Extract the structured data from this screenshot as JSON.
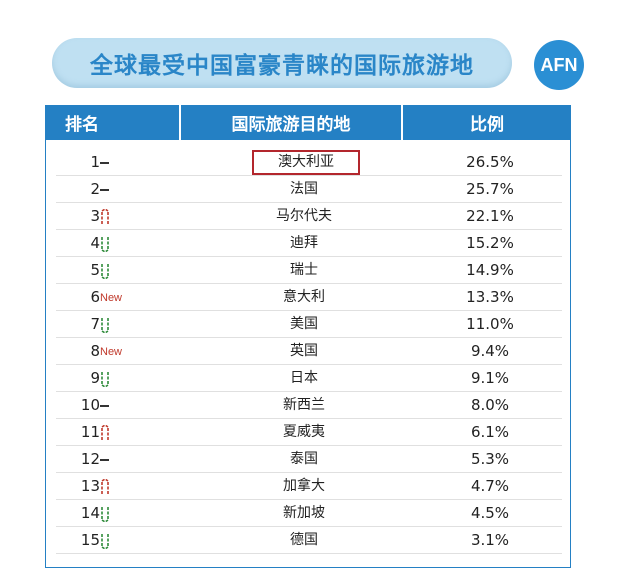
{
  "title": "全球最受中国富豪青睐的国际旅游地",
  "logo": "AFN",
  "headers": {
    "rank": "排名",
    "destination": "国际旅游目的地",
    "share": "比例"
  },
  "colors": {
    "header_bg": "#2480c4",
    "title_text": "#2a86c8",
    "up": "#c0392b",
    "down": "#2e8b3a",
    "highlight": "#b3262d"
  },
  "chart_data": {
    "type": "table",
    "columns": [
      "排名",
      "国际旅游目的地",
      "比例"
    ],
    "rows": [
      {
        "rank": "1",
        "trend": "same",
        "destination": "澳大利亚",
        "share": "26.5%",
        "value": 26.5,
        "highlighted": true
      },
      {
        "rank": "2",
        "trend": "same",
        "destination": "法国",
        "share": "25.7%",
        "value": 25.7
      },
      {
        "rank": "3",
        "trend": "up",
        "destination": "马尔代夫",
        "share": "22.1%",
        "value": 22.1
      },
      {
        "rank": "4",
        "trend": "down",
        "destination": "迪拜",
        "share": "15.2%",
        "value": 15.2
      },
      {
        "rank": "5",
        "trend": "down",
        "destination": "瑞士",
        "share": "14.9%",
        "value": 14.9
      },
      {
        "rank": "6",
        "trend": "new",
        "trend_label": "New",
        "destination": "意大利",
        "share": "13.3%",
        "value": 13.3
      },
      {
        "rank": "7",
        "trend": "down",
        "destination": "美国",
        "share": "11.0%",
        "value": 11.0
      },
      {
        "rank": "8",
        "trend": "new",
        "trend_label": "New",
        "destination": "英国",
        "share": "9.4%",
        "value": 9.4
      },
      {
        "rank": "9",
        "trend": "down",
        "destination": "日本",
        "share": "9.1%",
        "value": 9.1
      },
      {
        "rank": "10",
        "trend": "same",
        "destination": "新西兰",
        "share": "8.0%",
        "value": 8.0
      },
      {
        "rank": "11",
        "trend": "up",
        "destination": "夏威夷",
        "share": "6.1%",
        "value": 6.1
      },
      {
        "rank": "12",
        "trend": "same",
        "destination": "泰国",
        "share": "5.3%",
        "value": 5.3
      },
      {
        "rank": "13",
        "trend": "up",
        "destination": "加拿大",
        "share": "4.7%",
        "value": 4.7
      },
      {
        "rank": "14",
        "trend": "down",
        "destination": "新加坡",
        "share": "4.5%",
        "value": 4.5
      },
      {
        "rank": "15",
        "trend": "down",
        "destination": "德国",
        "share": "3.1%",
        "value": 3.1
      }
    ]
  }
}
